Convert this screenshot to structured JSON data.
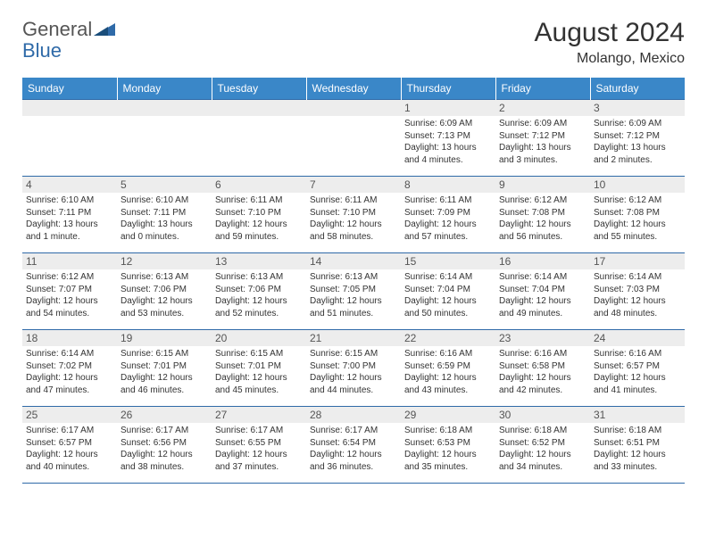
{
  "logo": {
    "general": "General",
    "blue": "Blue"
  },
  "title": "August 2024",
  "location": "Molango, Mexico",
  "colors": {
    "header_bg": "#3a87c8",
    "header_text": "#ffffff",
    "rule": "#2f6aa8",
    "daynum_bg": "#ededed",
    "logo_accent": "#2f6aa8"
  },
  "weekdays": [
    "Sunday",
    "Monday",
    "Tuesday",
    "Wednesday",
    "Thursday",
    "Friday",
    "Saturday"
  ],
  "grid": {
    "first_weekday_index": 4,
    "num_days": 31
  },
  "days": {
    "1": {
      "sr": "6:09 AM",
      "ss": "7:13 PM",
      "dl": "13 hours and 4 minutes."
    },
    "2": {
      "sr": "6:09 AM",
      "ss": "7:12 PM",
      "dl": "13 hours and 3 minutes."
    },
    "3": {
      "sr": "6:09 AM",
      "ss": "7:12 PM",
      "dl": "13 hours and 2 minutes."
    },
    "4": {
      "sr": "6:10 AM",
      "ss": "7:11 PM",
      "dl": "13 hours and 1 minute."
    },
    "5": {
      "sr": "6:10 AM",
      "ss": "7:11 PM",
      "dl": "13 hours and 0 minutes."
    },
    "6": {
      "sr": "6:11 AM",
      "ss": "7:10 PM",
      "dl": "12 hours and 59 minutes."
    },
    "7": {
      "sr": "6:11 AM",
      "ss": "7:10 PM",
      "dl": "12 hours and 58 minutes."
    },
    "8": {
      "sr": "6:11 AM",
      "ss": "7:09 PM",
      "dl": "12 hours and 57 minutes."
    },
    "9": {
      "sr": "6:12 AM",
      "ss": "7:08 PM",
      "dl": "12 hours and 56 minutes."
    },
    "10": {
      "sr": "6:12 AM",
      "ss": "7:08 PM",
      "dl": "12 hours and 55 minutes."
    },
    "11": {
      "sr": "6:12 AM",
      "ss": "7:07 PM",
      "dl": "12 hours and 54 minutes."
    },
    "12": {
      "sr": "6:13 AM",
      "ss": "7:06 PM",
      "dl": "12 hours and 53 minutes."
    },
    "13": {
      "sr": "6:13 AM",
      "ss": "7:06 PM",
      "dl": "12 hours and 52 minutes."
    },
    "14": {
      "sr": "6:13 AM",
      "ss": "7:05 PM",
      "dl": "12 hours and 51 minutes."
    },
    "15": {
      "sr": "6:14 AM",
      "ss": "7:04 PM",
      "dl": "12 hours and 50 minutes."
    },
    "16": {
      "sr": "6:14 AM",
      "ss": "7:04 PM",
      "dl": "12 hours and 49 minutes."
    },
    "17": {
      "sr": "6:14 AM",
      "ss": "7:03 PM",
      "dl": "12 hours and 48 minutes."
    },
    "18": {
      "sr": "6:14 AM",
      "ss": "7:02 PM",
      "dl": "12 hours and 47 minutes."
    },
    "19": {
      "sr": "6:15 AM",
      "ss": "7:01 PM",
      "dl": "12 hours and 46 minutes."
    },
    "20": {
      "sr": "6:15 AM",
      "ss": "7:01 PM",
      "dl": "12 hours and 45 minutes."
    },
    "21": {
      "sr": "6:15 AM",
      "ss": "7:00 PM",
      "dl": "12 hours and 44 minutes."
    },
    "22": {
      "sr": "6:16 AM",
      "ss": "6:59 PM",
      "dl": "12 hours and 43 minutes."
    },
    "23": {
      "sr": "6:16 AM",
      "ss": "6:58 PM",
      "dl": "12 hours and 42 minutes."
    },
    "24": {
      "sr": "6:16 AM",
      "ss": "6:57 PM",
      "dl": "12 hours and 41 minutes."
    },
    "25": {
      "sr": "6:17 AM",
      "ss": "6:57 PM",
      "dl": "12 hours and 40 minutes."
    },
    "26": {
      "sr": "6:17 AM",
      "ss": "6:56 PM",
      "dl": "12 hours and 38 minutes."
    },
    "27": {
      "sr": "6:17 AM",
      "ss": "6:55 PM",
      "dl": "12 hours and 37 minutes."
    },
    "28": {
      "sr": "6:17 AM",
      "ss": "6:54 PM",
      "dl": "12 hours and 36 minutes."
    },
    "29": {
      "sr": "6:18 AM",
      "ss": "6:53 PM",
      "dl": "12 hours and 35 minutes."
    },
    "30": {
      "sr": "6:18 AM",
      "ss": "6:52 PM",
      "dl": "12 hours and 34 minutes."
    },
    "31": {
      "sr": "6:18 AM",
      "ss": "6:51 PM",
      "dl": "12 hours and 33 minutes."
    }
  },
  "labels": {
    "sunrise": "Sunrise:",
    "sunset": "Sunset:",
    "daylight": "Daylight:"
  }
}
